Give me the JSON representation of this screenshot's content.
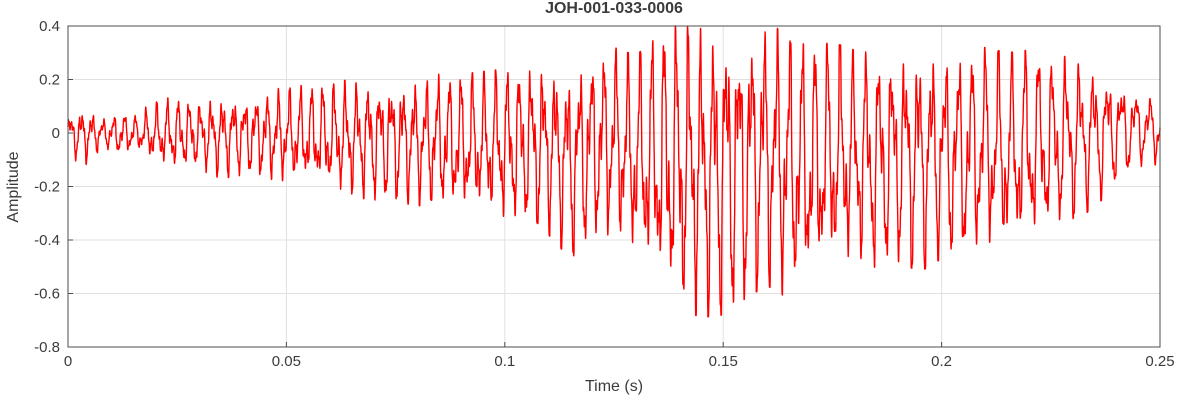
{
  "figure": {
    "background": "#ffffff"
  },
  "chart_data": {
    "type": "line",
    "title": "JOH-001-033-0006",
    "xlabel": "Time (s)",
    "ylabel": "Amplitude",
    "xlim": [
      0,
      0.25
    ],
    "ylim": [
      -0.8,
      0.4
    ],
    "xticks": [
      0,
      0.05,
      0.1,
      0.15,
      0.2,
      0.25
    ],
    "xtick_labels": [
      "0",
      "0.05",
      "0.1",
      "0.15",
      "0.2",
      "0.25"
    ],
    "yticks": [
      -0.8,
      -0.6,
      -0.4,
      -0.2,
      0,
      0.2,
      0.4
    ],
    "ytick_labels": [
      "-0.8",
      "-0.6",
      "-0.4",
      "-0.2",
      "0",
      "0.2",
      "0.4"
    ],
    "grid": true,
    "legend": "none",
    "colors": {
      "line": "#ff0000",
      "grid": "#e0e0e0",
      "axis": "#4d4d4d",
      "text": "#3b3b3b"
    },
    "signal": {
      "name": "JOH-001-033-0006 waveform",
      "description": "Dense oscillatory (speech/vibration-like) waveform at roughly 300-400 Hz. Amplitude grows from about +/-0.08 at t=0, negative peaks deepen to about -0.67 near t=0.145 s while positive peaks reach about +0.40 between t=0.14 and 0.16 s, then the envelope decays back to roughly +/-0.1 by t=0.25 s.",
      "carrier_hz_start": 410,
      "carrier_hz_end": 310,
      "envelope_format": [
        "t_seconds",
        "lower_peak",
        "upper_peak"
      ],
      "envelope": [
        [
          0.0,
          -0.08,
          0.07
        ],
        [
          0.004,
          -0.1,
          0.09
        ],
        [
          0.008,
          -0.05,
          0.05
        ],
        [
          0.012,
          -0.08,
          0.07
        ],
        [
          0.016,
          -0.06,
          0.06
        ],
        [
          0.02,
          -0.11,
          0.1
        ],
        [
          0.025,
          -0.13,
          0.12
        ],
        [
          0.03,
          -0.12,
          0.11
        ],
        [
          0.035,
          -0.15,
          0.13
        ],
        [
          0.04,
          -0.14,
          0.13
        ],
        [
          0.045,
          -0.16,
          0.14
        ],
        [
          0.05,
          -0.17,
          0.15
        ],
        [
          0.055,
          -0.18,
          0.16
        ],
        [
          0.06,
          -0.2,
          0.17
        ],
        [
          0.065,
          -0.22,
          0.18
        ],
        [
          0.07,
          -0.23,
          0.18
        ],
        [
          0.075,
          -0.24,
          0.19
        ],
        [
          0.08,
          -0.25,
          0.19
        ],
        [
          0.085,
          -0.27,
          0.2
        ],
        [
          0.09,
          -0.28,
          0.2
        ],
        [
          0.095,
          -0.29,
          0.21
        ],
        [
          0.1,
          -0.31,
          0.22
        ],
        [
          0.105,
          -0.33,
          0.24
        ],
        [
          0.11,
          -0.36,
          0.26
        ],
        [
          0.115,
          -0.45,
          0.22
        ],
        [
          0.12,
          -0.38,
          0.28
        ],
        [
          0.125,
          -0.36,
          0.3
        ],
        [
          0.13,
          -0.46,
          0.27
        ],
        [
          0.135,
          -0.55,
          0.34
        ],
        [
          0.14,
          -0.64,
          0.39
        ],
        [
          0.145,
          -0.67,
          0.37
        ],
        [
          0.15,
          -0.66,
          0.4
        ],
        [
          0.155,
          -0.6,
          0.38
        ],
        [
          0.16,
          -0.55,
          0.4
        ],
        [
          0.165,
          -0.6,
          0.34
        ],
        [
          0.17,
          -0.55,
          0.3
        ],
        [
          0.175,
          -0.5,
          0.32
        ],
        [
          0.18,
          -0.46,
          0.29
        ],
        [
          0.185,
          -0.5,
          0.28
        ],
        [
          0.19,
          -0.46,
          0.3
        ],
        [
          0.195,
          -0.5,
          0.31
        ],
        [
          0.2,
          -0.45,
          0.29
        ],
        [
          0.205,
          -0.46,
          0.28
        ],
        [
          0.21,
          -0.41,
          0.3
        ],
        [
          0.215,
          -0.44,
          0.28
        ],
        [
          0.22,
          -0.4,
          0.29
        ],
        [
          0.225,
          -0.35,
          0.26
        ],
        [
          0.23,
          -0.31,
          0.27
        ],
        [
          0.235,
          -0.26,
          0.24
        ],
        [
          0.24,
          -0.17,
          0.2
        ],
        [
          0.245,
          -0.11,
          0.15
        ],
        [
          0.25,
          -0.1,
          0.12
        ]
      ]
    }
  }
}
